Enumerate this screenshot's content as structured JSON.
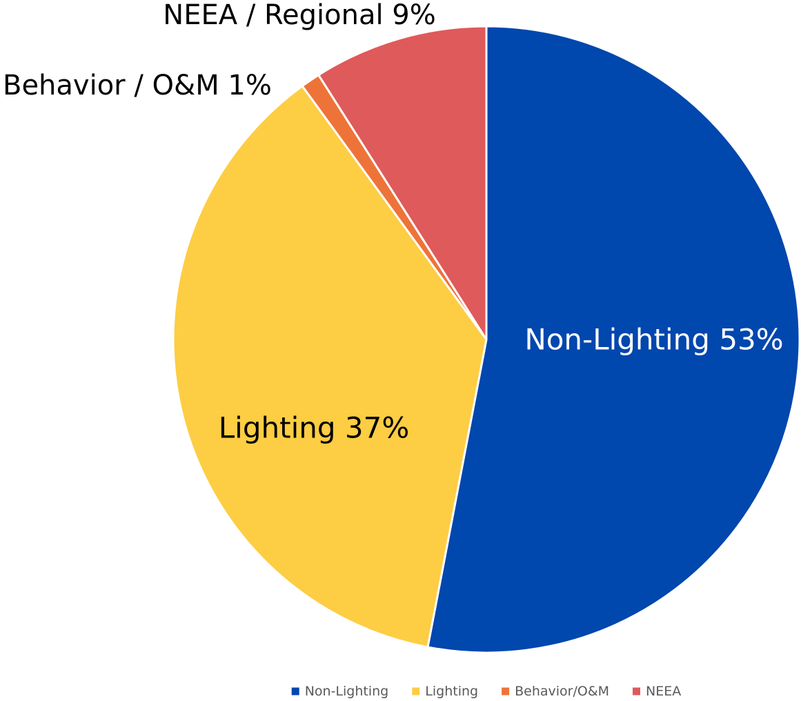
{
  "chart_data": {
    "type": "pie",
    "title": "",
    "slices": [
      {
        "name": "Non-Lighting",
        "value": 53,
        "color": "#0047AE",
        "label": "Non-Lighting 53%",
        "label_color": "#ffffff"
      },
      {
        "name": "Lighting",
        "value": 37,
        "color": "#FDCD43",
        "label": "Lighting 37%",
        "label_color": "#000000"
      },
      {
        "name": "Behavior/O&M",
        "value": 1,
        "color": "#EE7339",
        "label": "Behavior / O&M 1%",
        "label_color": "#000000"
      },
      {
        "name": "NEEA",
        "value": 9,
        "color": "#DF5A5A",
        "label": "NEEA / Regional 9%",
        "label_color": "#000000"
      }
    ],
    "legend_position": "bottom"
  }
}
